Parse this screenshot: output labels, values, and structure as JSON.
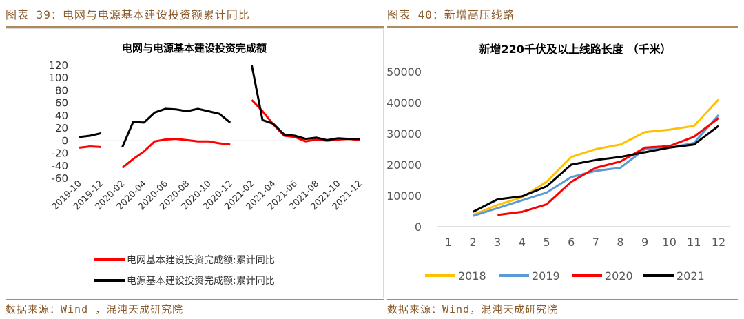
{
  "left": {
    "header": "图表 39：电网与电源基本建设投资额累计同比",
    "source": "数据来源：Wind ，混沌天成研究院"
  },
  "right": {
    "header": "图表 40：新增高压线路",
    "source": "数据来源：Wind，混沌天成研究院"
  },
  "chart_data": [
    {
      "type": "line",
      "title": "电网与电源基本建设投资完成额",
      "xlabel": "",
      "ylabel": "",
      "ylim": [
        -60,
        120
      ],
      "yticks": [
        120,
        100,
        80,
        60,
        40,
        20,
        0,
        -20,
        -40,
        -60
      ],
      "x": [
        "2019-10",
        "2019-11",
        "2019-12",
        "2020-01",
        "2020-02",
        "2020-03",
        "2020-04",
        "2020-05",
        "2020-06",
        "2020-07",
        "2020-08",
        "2020-09",
        "2020-10",
        "2020-11",
        "2020-12",
        "2021-01",
        "2021-02",
        "2021-03",
        "2021-04",
        "2021-05",
        "2021-06",
        "2021-07",
        "2021-08",
        "2021-09",
        "2021-10",
        "2021-11",
        "2021-12"
      ],
      "xtick_labels": [
        "2019-10",
        "2019-12",
        "2020-02",
        "2020-04",
        "2020-06",
        "2020-08",
        "2020-10",
        "2020-12",
        "2021-02",
        "2021-04",
        "2021-06",
        "2021-08",
        "2021-10",
        "2021-12"
      ],
      "series": [
        {
          "name": "电网基本建设投资完成额:累计同比",
          "color": "#ff0000",
          "values": [
            -11,
            -9,
            -10,
            null,
            -43,
            -29,
            -17,
            -1,
            2,
            3,
            1,
            -1,
            -1,
            -4,
            -6,
            null,
            65,
            47,
            26,
            8,
            6,
            -1,
            2,
            0,
            2,
            3,
            1
          ]
        },
        {
          "name": "电源基本建设投资完成额:累计同比",
          "color": "#000000",
          "values": [
            6,
            8,
            12,
            null,
            -10,
            30,
            29,
            45,
            51,
            50,
            47,
            51,
            47,
            43,
            29,
            null,
            120,
            33,
            27,
            10,
            8,
            3,
            5,
            1,
            4,
            3,
            3
          ]
        }
      ],
      "legend": "bottom"
    },
    {
      "type": "line",
      "title": "新增220千伏及以上线路长度 （千米）",
      "xlabel": "",
      "ylabel": "",
      "ylim": [
        0,
        50000
      ],
      "yticks": [
        50000,
        40000,
        30000,
        20000,
        10000,
        0
      ],
      "x": [
        1,
        2,
        3,
        4,
        5,
        6,
        7,
        8,
        9,
        10,
        11,
        12
      ],
      "series": [
        {
          "name": "2018",
          "color": "#ffc000",
          "values": [
            null,
            3800,
            7000,
            9500,
            14500,
            22500,
            25000,
            26500,
            30500,
            31300,
            32500,
            41000
          ]
        },
        {
          "name": "2019",
          "color": "#5b9bd5",
          "values": [
            null,
            3500,
            6000,
            8500,
            11000,
            16000,
            18000,
            19000,
            25000,
            25500,
            27000,
            36000
          ]
        },
        {
          "name": "2020",
          "color": "#ff0000",
          "values": [
            null,
            null,
            3800,
            4800,
            7200,
            14500,
            19000,
            21000,
            25500,
            26000,
            29000,
            35000
          ]
        },
        {
          "name": "2021",
          "color": "#000000",
          "values": [
            null,
            4800,
            8800,
            9800,
            13000,
            20000,
            21500,
            22500,
            24000,
            25500,
            26500,
            32500
          ]
        }
      ],
      "legend": "bottom"
    }
  ]
}
